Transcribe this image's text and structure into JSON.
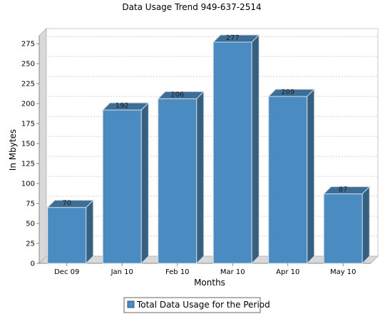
{
  "chart_data": {
    "type": "bar",
    "title": "Data Usage Trend 949-637-2514",
    "xlabel": "Months",
    "ylabel": "In Mbytes",
    "categories": [
      "Dec 09",
      "Jan 10",
      "Feb 10",
      "Mar 10",
      "Apr 10",
      "May 10"
    ],
    "series": [
      {
        "name": "Total Data Usage for the Period",
        "values": [
          70,
          192,
          206,
          277,
          209,
          87
        ]
      }
    ],
    "data_labels": [
      "70",
      "192",
      "206",
      "277",
      "209",
      "87"
    ],
    "yticks": [
      0,
      25,
      50,
      75,
      100,
      125,
      150,
      175,
      200,
      225,
      250,
      275
    ],
    "ylim": [
      0,
      285
    ],
    "grid": true,
    "legend_position": "bottom",
    "colors": {
      "bar_front": "#4a8bc2",
      "bar_top": "#3d6e97",
      "bar_side": "#35607f",
      "bar_edge": "#d0d8e0",
      "wall": "#d9d9d9",
      "grid": "#d0d0d0"
    }
  }
}
